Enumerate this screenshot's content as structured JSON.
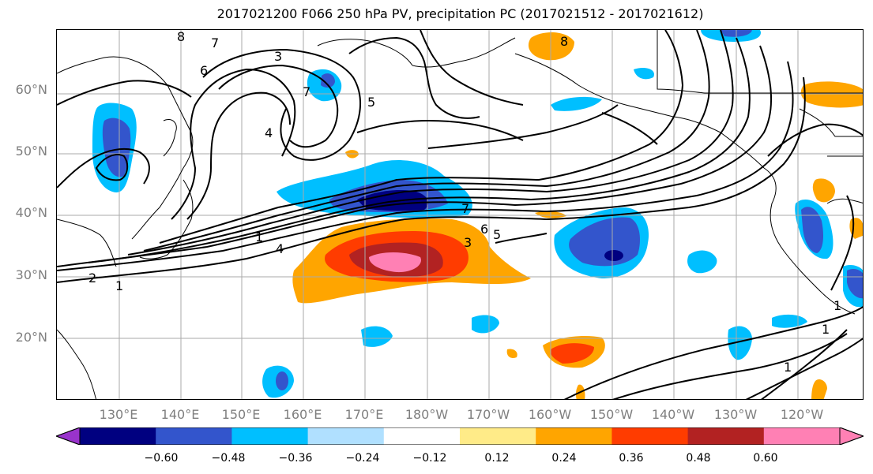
{
  "title": "2017021200 F066 250 hPa PV, precipitation PC (2017021512 - 2017021612)",
  "lat_labels": [
    "60°N",
    "50°N",
    "40°N",
    "30°N",
    "20°N"
  ],
  "lon_labels": [
    "130°E",
    "140°E",
    "150°E",
    "160°E",
    "170°E",
    "180°W",
    "170°W",
    "160°W",
    "150°W",
    "140°W",
    "130°W",
    "120°W"
  ],
  "colorbar": {
    "ticks": [
      "−0.60",
      "−0.48",
      "−0.36",
      "−0.24",
      "−0.12",
      "0.12",
      "0.24",
      "0.36",
      "0.48",
      "0.60"
    ],
    "colors": [
      "#9933cc",
      "#000080",
      "#3355cc",
      "#00bfff",
      "#b0e0ff",
      "#ffffff",
      "#ffeb88",
      "#ffa500",
      "#ff3c00",
      "#b22222",
      "#ff80b4",
      "#ff80b4"
    ]
  },
  "contour_labels": [
    "8",
    "7",
    "6",
    "3",
    "5",
    "7",
    "4",
    "1",
    "4",
    "2",
    "1",
    "7",
    "6",
    "5",
    "3",
    "1",
    "1",
    "1",
    "8"
  ]
}
